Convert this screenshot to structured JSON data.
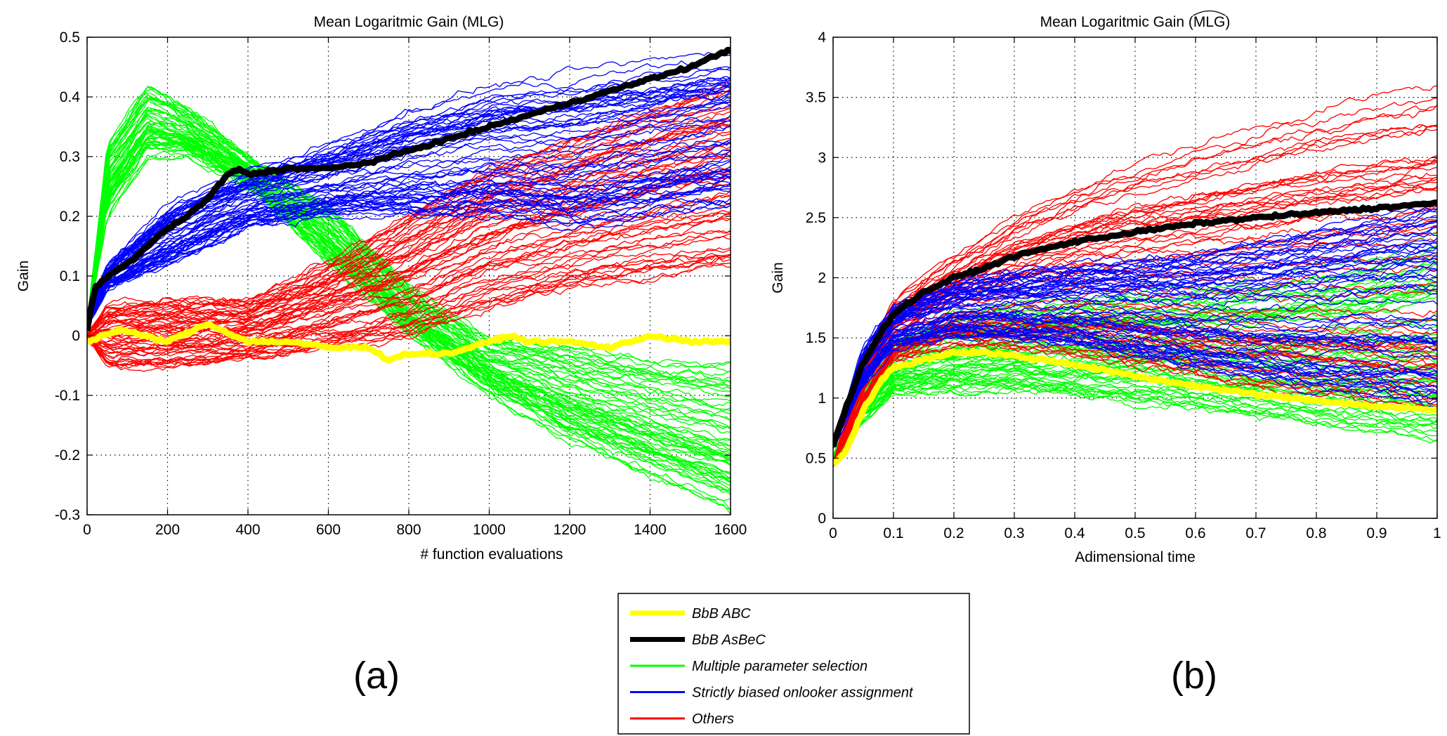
{
  "figure": {
    "legend": {
      "entries": [
        {
          "label": "BbB  ABC",
          "color": "#ffff00",
          "weight": "thick"
        },
        {
          "label": "BbB  AsBeC",
          "color": "#000000",
          "weight": "thick"
        },
        {
          "label": "Multiple parameter selection",
          "color": "#00ff00",
          "weight": "thin"
        },
        {
          "label": "Strictly biased onlooker assignment",
          "color": "#0000ff",
          "weight": "thin"
        },
        {
          "label": "Others",
          "color": "#ff0000",
          "weight": "thin"
        }
      ]
    },
    "panel_labels": [
      "(a)",
      "(b)"
    ]
  },
  "chart_data": [
    {
      "type": "line",
      "title": "Mean Logaritmic Gain (MLG)",
      "xlabel": "# function evaluations",
      "ylabel": "Gain",
      "xlim": [
        0,
        1600
      ],
      "ylim": [
        -0.3,
        0.5
      ],
      "xticks": [
        0,
        200,
        400,
        600,
        800,
        1000,
        1200,
        1400,
        1600
      ],
      "yticks": [
        -0.3,
        -0.2,
        -0.1,
        0,
        0.1,
        0.2,
        0.3,
        0.4,
        0.5
      ],
      "ytick_labels": [
        "-0.3",
        "-0.2",
        "-0.1",
        "0",
        "0.1",
        "0.2",
        "0.3",
        "0.4",
        "0.5"
      ],
      "xtick_labels": [
        "0",
        "200",
        "400",
        "600",
        "800",
        "1000",
        "1200",
        "1400",
        "1600"
      ],
      "grid": true,
      "series": [
        {
          "group": "Multiple parameter selection",
          "color": "#00ff00",
          "count": 60,
          "x": [
            0,
            50,
            150,
            250,
            400,
            600,
            800,
            1000,
            1200,
            1400,
            1600
          ],
          "y_low": [
            0.02,
            0.2,
            0.3,
            0.3,
            0.25,
            0.12,
            0.0,
            -0.1,
            -0.18,
            -0.24,
            -0.3
          ],
          "y_high": [
            0.02,
            0.32,
            0.42,
            0.38,
            0.3,
            0.22,
            0.08,
            0.0,
            -0.02,
            -0.04,
            -0.05
          ]
        },
        {
          "group": "Others",
          "color": "#ff0000",
          "count": 60,
          "x": [
            0,
            50,
            200,
            400,
            600,
            800,
            1000,
            1200,
            1400,
            1600
          ],
          "y_low": [
            0.0,
            -0.05,
            -0.05,
            -0.04,
            -0.02,
            0.0,
            0.05,
            0.08,
            0.1,
            0.12
          ],
          "y_high": [
            0.0,
            0.05,
            0.06,
            0.06,
            0.12,
            0.2,
            0.28,
            0.33,
            0.38,
            0.42
          ]
        },
        {
          "group": "Strictly biased onlooker assignment",
          "color": "#0000ff",
          "count": 60,
          "x": [
            0,
            50,
            200,
            400,
            600,
            800,
            1000,
            1200,
            1400,
            1600
          ],
          "y_low": [
            0.02,
            0.08,
            0.12,
            0.18,
            0.2,
            0.2,
            0.2,
            0.18,
            0.2,
            0.22
          ],
          "y_high": [
            0.02,
            0.12,
            0.22,
            0.28,
            0.32,
            0.38,
            0.42,
            0.44,
            0.46,
            0.48
          ]
        },
        {
          "name": "BbB  ABC",
          "color": "#ffff00",
          "x": [
            0,
            80,
            200,
            300,
            400,
            500,
            600,
            700,
            750,
            800,
            900,
            1000,
            1050,
            1100,
            1200,
            1300,
            1400,
            1500,
            1600
          ],
          "y": [
            -0.01,
            0.01,
            -0.01,
            0.02,
            -0.01,
            -0.01,
            -0.02,
            -0.02,
            -0.04,
            -0.03,
            -0.03,
            -0.01,
            0.0,
            -0.01,
            -0.01,
            -0.02,
            0.0,
            -0.01,
            -0.01
          ]
        },
        {
          "name": "BbB  AsBeC",
          "color": "#000000",
          "x": [
            0,
            20,
            50,
            100,
            150,
            200,
            250,
            300,
            350,
            380,
            400,
            500,
            600,
            700,
            800,
            900,
            1000,
            1100,
            1200,
            1300,
            1400,
            1500,
            1600
          ],
          "y": [
            0.01,
            0.08,
            0.1,
            0.12,
            0.15,
            0.18,
            0.2,
            0.23,
            0.27,
            0.28,
            0.27,
            0.28,
            0.28,
            0.29,
            0.31,
            0.33,
            0.35,
            0.37,
            0.39,
            0.41,
            0.43,
            0.45,
            0.48
          ]
        }
      ]
    },
    {
      "type": "line",
      "title": "Mean Logaritmic Gain (MLG)",
      "title_hat_on": "MLG",
      "xlabel": "Adimensional time",
      "ylabel": "Gain",
      "xlim": [
        0,
        1
      ],
      "ylim": [
        0,
        4
      ],
      "xticks": [
        0,
        0.1,
        0.2,
        0.3,
        0.4,
        0.5,
        0.6,
        0.7,
        0.8,
        0.9,
        1
      ],
      "yticks": [
        0,
        0.5,
        1,
        1.5,
        2,
        2.5,
        3,
        3.5,
        4
      ],
      "xtick_labels": [
        "0",
        "0.1",
        "0.2",
        "0.3",
        "0.4",
        "0.5",
        "0.6",
        "0.7",
        "0.8",
        "0.9",
        "1"
      ],
      "ytick_labels": [
        "0",
        "0.5",
        "1",
        "1.5",
        "2",
        "2.5",
        "3",
        "3.5",
        "4"
      ],
      "grid": true,
      "series": [
        {
          "group": "Multiple parameter selection",
          "color": "#00ff00",
          "count": 60,
          "x": [
            0,
            0.05,
            0.1,
            0.2,
            0.3,
            0.4,
            0.5,
            0.6,
            0.7,
            0.8,
            0.9,
            1
          ],
          "y_low": [
            0.5,
            0.8,
            1.05,
            1.05,
            1.05,
            1.0,
            0.95,
            0.9,
            0.82,
            0.75,
            0.68,
            0.6
          ],
          "y_high": [
            0.5,
            1.2,
            1.5,
            1.7,
            1.8,
            1.85,
            1.9,
            1.95,
            2.0,
            2.1,
            2.2,
            2.4
          ]
        },
        {
          "group": "Others",
          "color": "#ff0000",
          "count": 60,
          "x": [
            0,
            0.05,
            0.1,
            0.2,
            0.3,
            0.4,
            0.5,
            0.6,
            0.7,
            0.8,
            0.9,
            1
          ],
          "y_low": [
            0.45,
            0.9,
            1.3,
            1.45,
            1.4,
            1.35,
            1.25,
            1.15,
            1.05,
            0.98,
            0.92,
            0.88
          ],
          "y_high": [
            0.45,
            1.3,
            1.8,
            2.2,
            2.5,
            2.75,
            2.95,
            3.1,
            3.25,
            3.4,
            3.5,
            3.6
          ]
        },
        {
          "group": "Strictly biased onlooker assignment",
          "color": "#0000ff",
          "count": 60,
          "x": [
            0,
            0.05,
            0.1,
            0.2,
            0.3,
            0.4,
            0.5,
            0.6,
            0.7,
            0.8,
            0.9,
            1
          ],
          "y_low": [
            0.6,
            1.1,
            1.4,
            1.5,
            1.45,
            1.4,
            1.3,
            1.2,
            1.1,
            1.0,
            0.95,
            0.85
          ],
          "y_high": [
            0.6,
            1.4,
            1.75,
            1.95,
            2.05,
            2.1,
            2.15,
            2.2,
            2.3,
            2.4,
            2.5,
            2.6
          ]
        },
        {
          "name": "BbB  ABC",
          "color": "#ffff00",
          "x": [
            0,
            0.02,
            0.05,
            0.08,
            0.1,
            0.15,
            0.2,
            0.25,
            0.3,
            0.4,
            0.5,
            0.6,
            0.7,
            0.8,
            0.9,
            1
          ],
          "y": [
            0.45,
            0.55,
            0.9,
            1.15,
            1.25,
            1.32,
            1.38,
            1.38,
            1.35,
            1.28,
            1.18,
            1.1,
            1.03,
            0.98,
            0.93,
            0.9
          ]
        },
        {
          "name": "BbB  AsBeC",
          "color": "#000000",
          "x": [
            0,
            0.02,
            0.05,
            0.08,
            0.1,
            0.15,
            0.2,
            0.25,
            0.3,
            0.4,
            0.5,
            0.6,
            0.7,
            0.8,
            0.9,
            1
          ],
          "y": [
            0.6,
            0.9,
            1.3,
            1.55,
            1.7,
            1.88,
            2.0,
            2.08,
            2.18,
            2.3,
            2.38,
            2.45,
            2.5,
            2.54,
            2.58,
            2.62
          ]
        }
      ]
    }
  ]
}
